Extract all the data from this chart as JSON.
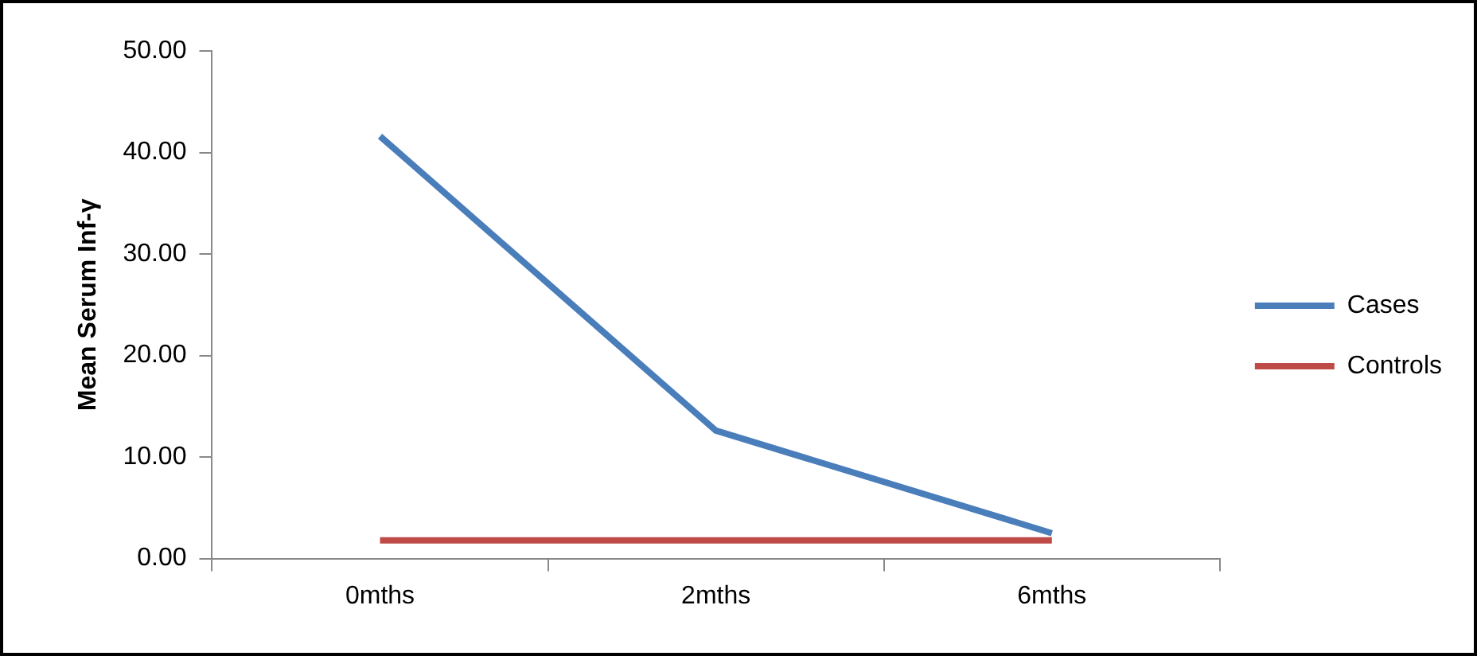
{
  "chart_data": {
    "type": "line",
    "ylabel": "Mean Serum Inf-γ",
    "categories": [
      "0mths",
      "2mths",
      "6mths"
    ],
    "series": [
      {
        "name": "Cases",
        "color": "#4a7ebb",
        "values": [
          41.6,
          12.6,
          2.5
        ]
      },
      {
        "name": "Controls",
        "color": "#be4b48",
        "values": [
          1.8,
          1.8,
          1.8
        ]
      }
    ],
    "ylim": [
      0,
      50
    ],
    "yticks": [
      {
        "value": 0,
        "label": "0.00"
      },
      {
        "value": 10,
        "label": "10.00"
      },
      {
        "value": 20,
        "label": "20.00"
      },
      {
        "value": 30,
        "label": "30.00"
      },
      {
        "value": 40,
        "label": "40.00"
      },
      {
        "value": 50,
        "label": "50.00"
      }
    ],
    "grid": false,
    "legend": "right",
    "marker": "none",
    "line_style": "solid"
  }
}
